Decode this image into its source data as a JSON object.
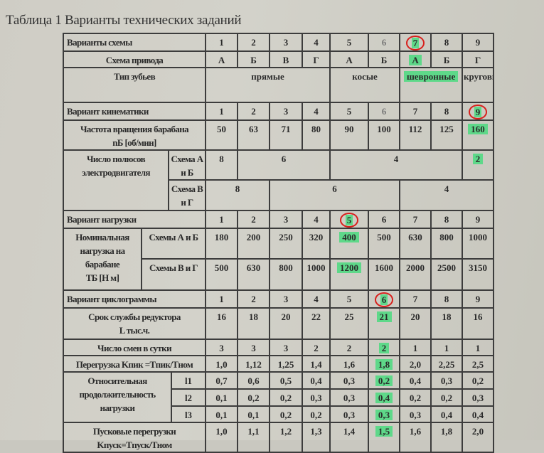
{
  "title": "Таблица 1 Варианты технических заданий",
  "highlight_color": "#5ed889",
  "circle_color": "#d8201c",
  "scheme": {
    "label": "Варианты схемы",
    "nums": [
      "1",
      "2",
      "3",
      "4",
      "5",
      "6",
      "7",
      "8",
      "9"
    ],
    "drive_label": "Схема привода",
    "drive": [
      "А",
      "Б",
      "В",
      "Г",
      "А",
      "Б",
      "А",
      "Б",
      "Г"
    ],
    "teeth_label": "Тип зубьев",
    "teeth": [
      "прямые",
      "косые",
      "шевронные",
      "круговые"
    ]
  },
  "kinematics": {
    "label": "Вариант кинематики",
    "nums": [
      "1",
      "2",
      "3",
      "4",
      "5",
      "6",
      "7",
      "8",
      "9"
    ],
    "speed_label": "Частота вращения барабана",
    "speed_unit": "nБ [об/мин]",
    "speed": [
      "50",
      "63",
      "71",
      "80",
      "90",
      "100",
      "112",
      "125",
      "160"
    ],
    "poles_label": "Число полюсов электродвигателя",
    "ab_label": "Схема А и Б",
    "ab": [
      "8",
      "6",
      "4",
      "2"
    ],
    "vg_label": "Схема В и Г",
    "vg": [
      "8",
      "6",
      "4"
    ]
  },
  "load": {
    "label": "Вариант нагрузки",
    "nums": [
      "1",
      "2",
      "3",
      "4",
      "5",
      "6",
      "7",
      "8",
      "9"
    ],
    "nominal_label": "Номинальная нагрузка на барабане",
    "nominal_unit": "TБ [Н м]",
    "ab_label": "Схемы А и Б",
    "ab": [
      "180",
      "200",
      "250",
      "320",
      "400",
      "500",
      "630",
      "800",
      "1000"
    ],
    "vg_label": "Схемы В и Г",
    "vg": [
      "500",
      "630",
      "800",
      "1000",
      "1200",
      "1600",
      "2000",
      "2500",
      "3150"
    ]
  },
  "cyclogram": {
    "label": "Вариант циклограммы",
    "nums": [
      "1",
      "2",
      "3",
      "4",
      "5",
      "6",
      "7",
      "8",
      "9"
    ],
    "life_label": "Срок службы редуктора",
    "life_unit": "L тыс.ч.",
    "life": [
      "16",
      "18",
      "20",
      "22",
      "25",
      "21",
      "20",
      "18",
      "16"
    ],
    "shifts_label": "Число смен в сутки",
    "shifts": [
      "3",
      "3",
      "3",
      "2",
      "2",
      "2",
      "1",
      "1",
      "1"
    ],
    "overload_label": "Перегрузка Kпик =Tпик/Tном",
    "overload": [
      "1,0",
      "1,12",
      "1,25",
      "1,4",
      "1,6",
      "1,8",
      "2,0",
      "2,25",
      "2,5"
    ],
    "duration_label": "Относительная продолжительность нагрузки",
    "l": [
      {
        "label": "l1",
        "values": [
          "0,7",
          "0,6",
          "0,5",
          "0,4",
          "0,3",
          "0,2",
          "0,4",
          "0,3",
          "0,2"
        ]
      },
      {
        "label": "l2",
        "values": [
          "0,1",
          "0,2",
          "0,2",
          "0,3",
          "0,3",
          "0,4",
          "0,2",
          "0,2",
          "0,3"
        ]
      },
      {
        "label": "l3",
        "values": [
          "0,1",
          "0,1",
          "0,2",
          "0,2",
          "0,3",
          "0,3",
          "0,3",
          "0,4",
          "0,4"
        ]
      }
    ],
    "start_label": "Пусковые перегрузки",
    "start_formula": "Kпуск=Tпуск/Tном",
    "start": [
      "1,0",
      "1,1",
      "1,2",
      "1,3",
      "1,4",
      "1,5",
      "1,6",
      "1,8",
      "2,0"
    ]
  }
}
